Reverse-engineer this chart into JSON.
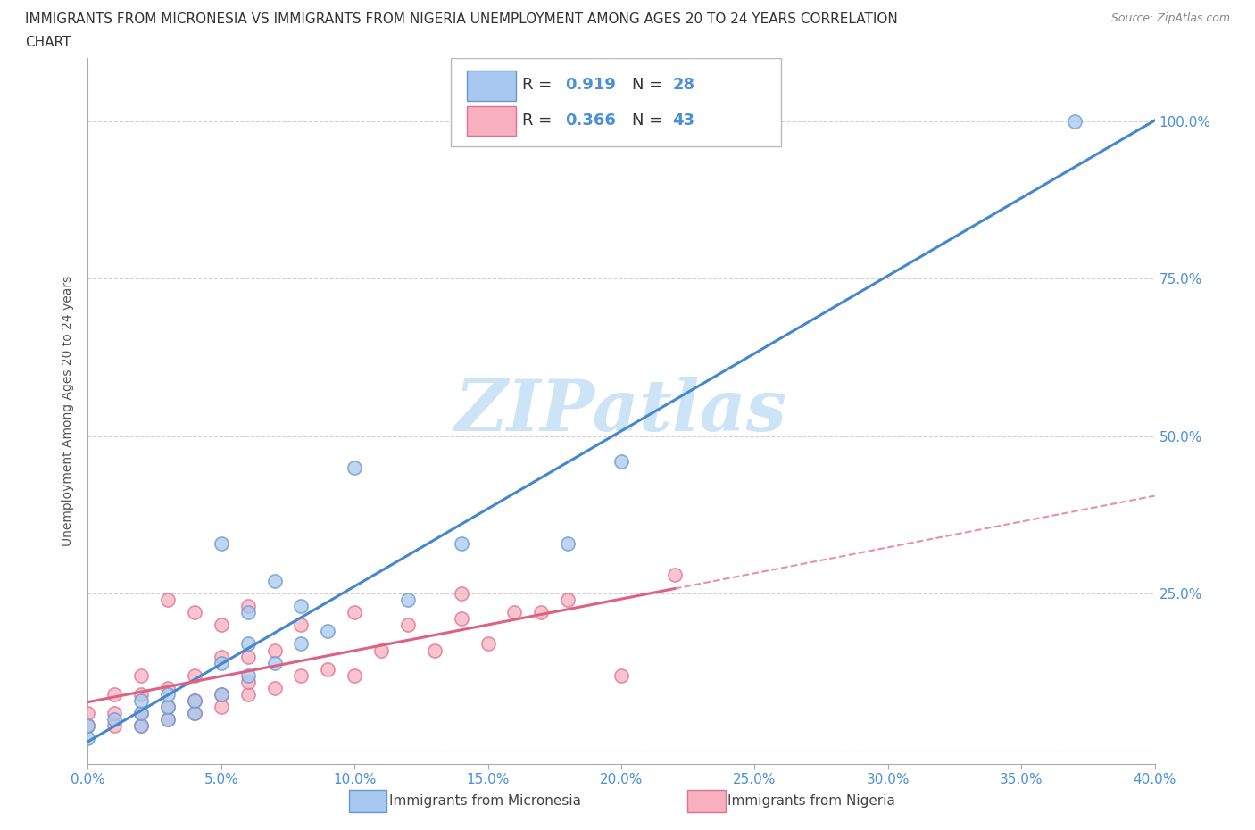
{
  "title_line1": "IMMIGRANTS FROM MICRONESIA VS IMMIGRANTS FROM NIGERIA UNEMPLOYMENT AMONG AGES 20 TO 24 YEARS CORRELATION",
  "title_line2": "CHART",
  "source": "Source: ZipAtlas.com",
  "ylabel_label": "Unemployment Among Ages 20 to 24 years",
  "xlim": [
    0.0,
    0.4
  ],
  "ylim": [
    -0.02,
    1.1
  ],
  "x_tick_vals": [
    0.0,
    0.05,
    0.1,
    0.15,
    0.2,
    0.25,
    0.3,
    0.35,
    0.4
  ],
  "x_tick_labels": [
    "0.0%",
    "5.0%",
    "10.0%",
    "15.0%",
    "20.0%",
    "25.0%",
    "30.0%",
    "35.0%",
    "40.0%"
  ],
  "y_tick_vals": [
    0.25,
    0.5,
    0.75,
    1.0
  ],
  "y_tick_labels": [
    "25.0%",
    "50.0%",
    "75.0%",
    "100.0%"
  ],
  "micronesia_R": "0.919",
  "micronesia_N": "28",
  "nigeria_R": "0.366",
  "nigeria_N": "43",
  "micronesia_scatter_color": "#a8c8f0",
  "micronesia_scatter_edge": "#6699cc",
  "nigeria_scatter_color": "#f8b0c0",
  "nigeria_scatter_edge": "#e07090",
  "micronesia_line_color": "#4488cc",
  "nigeria_line_color": "#e06080",
  "watermark": "ZIPatlas",
  "watermark_color": "#cce4f5",
  "bg_color": "#ffffff",
  "grid_color": "#cccccc",
  "tick_color": "#4a90d9",
  "title_color": "#333333",
  "micronesia_scatter_x": [
    0.0,
    0.0,
    0.01,
    0.02,
    0.02,
    0.02,
    0.03,
    0.03,
    0.03,
    0.04,
    0.04,
    0.05,
    0.05,
    0.05,
    0.06,
    0.06,
    0.06,
    0.07,
    0.07,
    0.08,
    0.08,
    0.09,
    0.1,
    0.12,
    0.14,
    0.18,
    0.2,
    0.37
  ],
  "micronesia_scatter_y": [
    0.02,
    0.04,
    0.05,
    0.04,
    0.06,
    0.08,
    0.05,
    0.07,
    0.09,
    0.06,
    0.08,
    0.09,
    0.14,
    0.33,
    0.12,
    0.17,
    0.22,
    0.14,
    0.27,
    0.17,
    0.23,
    0.19,
    0.45,
    0.24,
    0.33,
    0.33,
    0.46,
    1.0
  ],
  "nigeria_scatter_x": [
    0.0,
    0.0,
    0.01,
    0.01,
    0.01,
    0.02,
    0.02,
    0.02,
    0.02,
    0.03,
    0.03,
    0.03,
    0.03,
    0.04,
    0.04,
    0.04,
    0.04,
    0.05,
    0.05,
    0.05,
    0.05,
    0.06,
    0.06,
    0.06,
    0.06,
    0.07,
    0.07,
    0.08,
    0.08,
    0.09,
    0.1,
    0.1,
    0.11,
    0.12,
    0.13,
    0.14,
    0.14,
    0.15,
    0.16,
    0.17,
    0.18,
    0.2,
    0.22
  ],
  "nigeria_scatter_y": [
    0.04,
    0.06,
    0.04,
    0.06,
    0.09,
    0.04,
    0.06,
    0.09,
    0.12,
    0.05,
    0.07,
    0.1,
    0.24,
    0.06,
    0.08,
    0.12,
    0.22,
    0.07,
    0.09,
    0.15,
    0.2,
    0.09,
    0.11,
    0.15,
    0.23,
    0.1,
    0.16,
    0.12,
    0.2,
    0.13,
    0.12,
    0.22,
    0.16,
    0.2,
    0.16,
    0.21,
    0.25,
    0.17,
    0.22,
    0.22,
    0.24,
    0.12,
    0.28
  ],
  "title_fontsize": 11,
  "axis_label_fontsize": 10,
  "tick_fontsize": 11,
  "legend_fontsize": 13
}
